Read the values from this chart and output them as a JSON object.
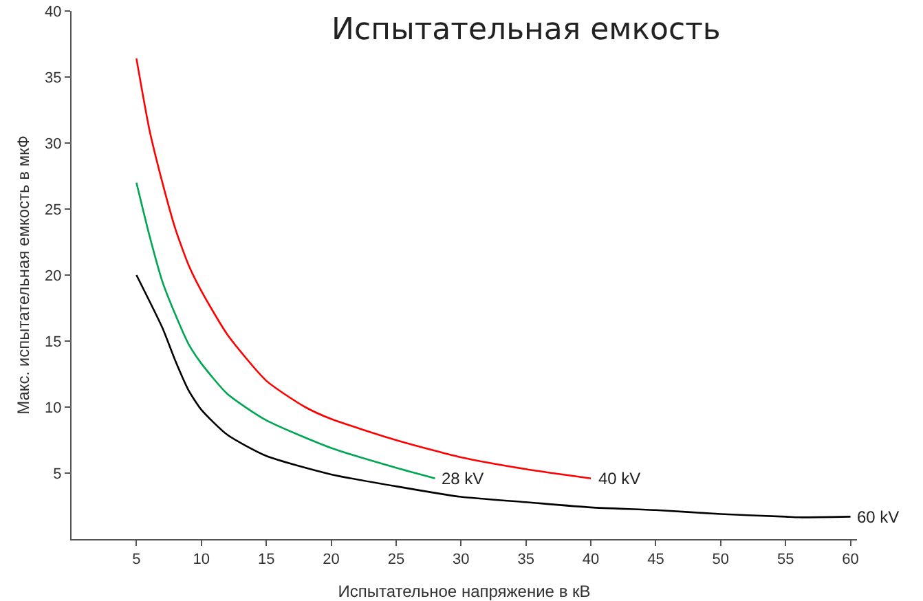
{
  "chart_data": {
    "type": "line",
    "title": "Испытательная емкость",
    "xlabel": "Испытательное напряжение в кВ",
    "ylabel": "Макс. испытательная емкость в мкФ",
    "xlim": [
      0,
      60.5
    ],
    "xticks": [
      5,
      10,
      15,
      20,
      25,
      30,
      35,
      40,
      45,
      50,
      55,
      60
    ],
    "ylim": [
      0,
      40
    ],
    "yticks": [
      5,
      10,
      15,
      20,
      25,
      30,
      35,
      40
    ],
    "grid": false,
    "legend": false,
    "marker": "none",
    "line_style": "solid",
    "series": [
      {
        "name": "40 kV",
        "color": "#ff0000",
        "x": [
          5,
          6,
          7,
          8,
          9,
          10,
          12,
          15,
          18,
          20,
          25,
          30,
          35,
          40
        ],
        "values": [
          36.4,
          31,
          27,
          23.5,
          20.8,
          18.8,
          15.5,
          12,
          10,
          9.1,
          7.5,
          6.2,
          5.3,
          4.6
        ]
      },
      {
        "name": "28 kV",
        "color": "#00a651",
        "x": [
          5,
          6,
          7,
          8,
          9,
          10,
          12,
          15,
          20,
          25,
          28
        ],
        "values": [
          27,
          23,
          19.5,
          17,
          14.8,
          13.3,
          11,
          9,
          6.9,
          5.4,
          4.6
        ]
      },
      {
        "name": "60 kV",
        "color": "#000000",
        "x": [
          5,
          7,
          8,
          9,
          10,
          12,
          15,
          20,
          25,
          30,
          35,
          40,
          45,
          50,
          55,
          56,
          60
        ],
        "values": [
          20,
          16,
          13.5,
          11.3,
          9.8,
          7.9,
          6.3,
          4.9,
          4,
          3.2,
          2.8,
          2.4,
          2.2,
          1.9,
          1.7,
          1.65,
          1.7
        ]
      }
    ]
  }
}
